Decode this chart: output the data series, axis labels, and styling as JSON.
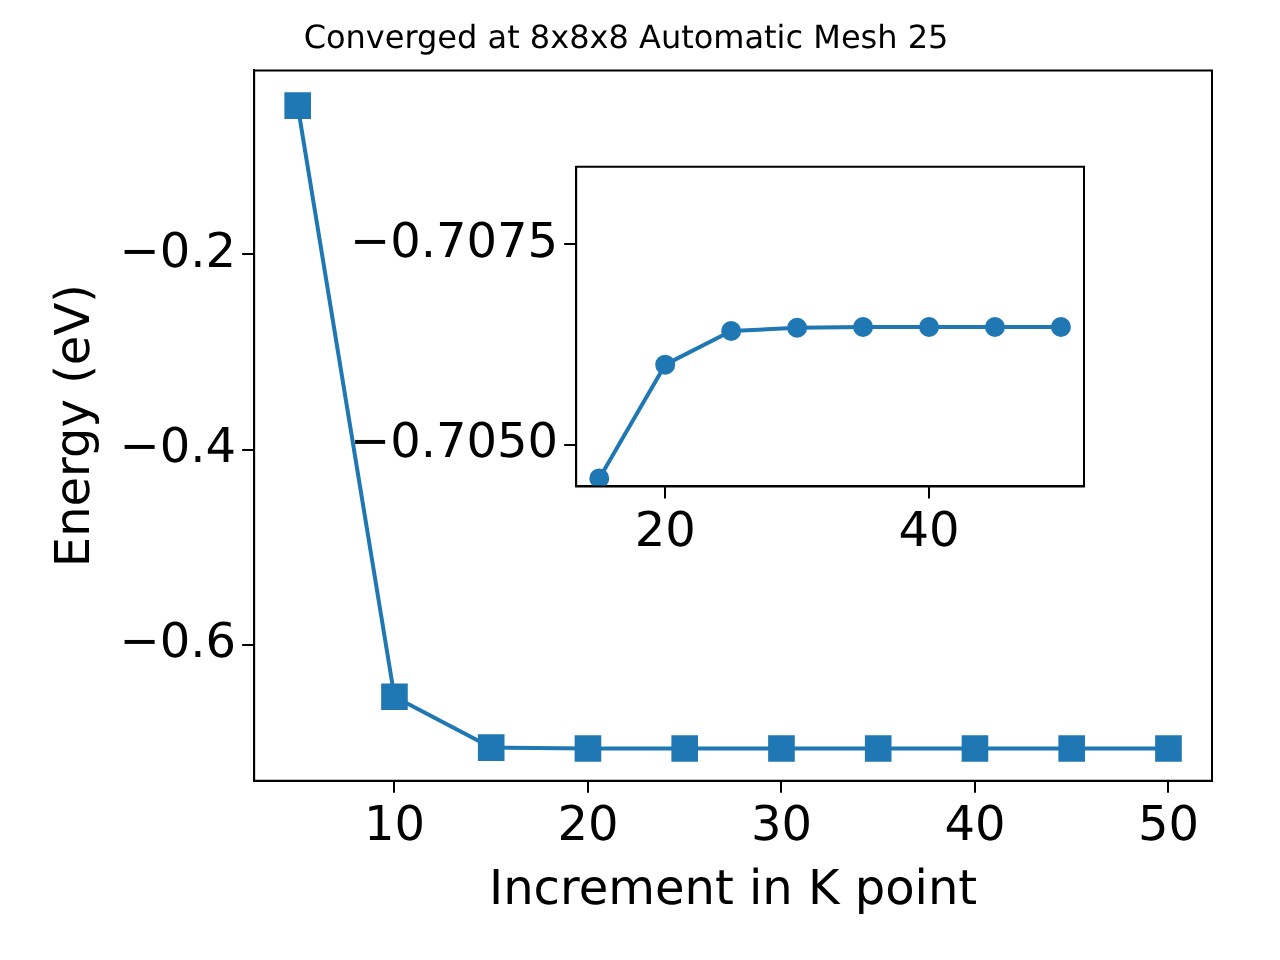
{
  "chart_data": [
    {
      "type": "line",
      "title": "Converged at 8x8x8 Automatic Mesh 25",
      "xlabel": "Increment in K point",
      "ylabel": "Energy (eV)",
      "x": [
        5,
        10,
        15,
        20,
        25,
        30,
        35,
        40,
        45,
        50
      ],
      "series": [
        {
          "color": "#1f77b4",
          "values": [
            -0.048,
            -0.653,
            -0.705,
            -0.706,
            -0.706,
            -0.706,
            -0.706,
            -0.706,
            -0.706,
            -0.706
          ]
        }
      ],
      "xlim": [
        2.75,
        52.25
      ],
      "xticks": [
        10,
        20,
        30,
        40,
        50
      ],
      "ylim": [
        -0.739,
        -0.012
      ],
      "yticks": [
        {
          "value": -0.6,
          "label": "−0.6"
        },
        {
          "value": -0.4,
          "label": "−0.4"
        },
        {
          "value": -0.2,
          "label": "−0.2"
        }
      ],
      "marker": "square",
      "grid": false,
      "legend": false
    },
    {
      "type": "line",
      "x": [
        15,
        20,
        25,
        30,
        35,
        40,
        45,
        50
      ],
      "series": [
        {
          "color": "#1f77b4",
          "values": [
            -0.70458,
            -0.706,
            -0.70642,
            -0.70646,
            -0.70647,
            -0.70647,
            -0.70647,
            -0.70647
          ]
        }
      ],
      "xlim": [
        13.25,
        51.75
      ],
      "xticks": [
        20,
        40
      ],
      "ylim": [
        -0.70448,
        -0.70847
      ],
      "yticks": [
        {
          "value": -0.7075,
          "label": "−0.7075"
        },
        {
          "value": -0.705,
          "label": "−0.7050"
        }
      ],
      "marker": "circle",
      "grid": false,
      "legend": false
    }
  ]
}
